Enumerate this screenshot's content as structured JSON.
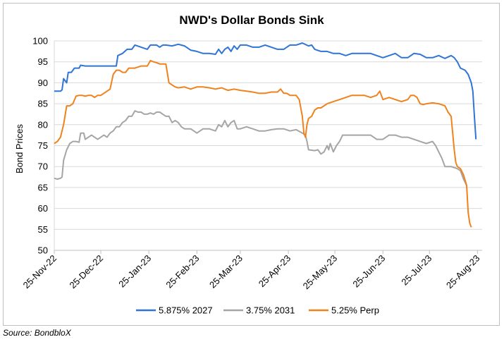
{
  "chart_data": {
    "type": "line",
    "title": "NWD's Dollar Bonds Sink",
    "ylabel": "Bond Prices",
    "xlabel": "",
    "ylim": [
      50,
      100
    ],
    "ytick_step": 5,
    "grid": "horizontal",
    "legend_position": "bottom",
    "x_tick_labels": [
      "25-Nov-22",
      "25-Dec-22",
      "25-Jan-23",
      "25-Feb-23",
      "25-Mar-23",
      "25-Apr-23",
      "25-May-23",
      "25-Jun-23",
      "25-Jul-23",
      "25-Aug-23"
    ],
    "x_domain_days": [
      0,
      276
    ],
    "x_tick_days": [
      0,
      30,
      61,
      92,
      120,
      151,
      181,
      212,
      242,
      273
    ],
    "series": [
      {
        "name": "5.875% 2027",
        "color": "#2e75d6",
        "points": [
          [
            0,
            88
          ],
          [
            4,
            88
          ],
          [
            5,
            88.3
          ],
          [
            6,
            91
          ],
          [
            8,
            90
          ],
          [
            9,
            92.5
          ],
          [
            11,
            92.5
          ],
          [
            13,
            93.5
          ],
          [
            16,
            93.5
          ],
          [
            17,
            94.2
          ],
          [
            20,
            94
          ],
          [
            24,
            94
          ],
          [
            28,
            94
          ],
          [
            32,
            94
          ],
          [
            40,
            94
          ],
          [
            41,
            96.5
          ],
          [
            44,
            97
          ],
          [
            47,
            98
          ],
          [
            50,
            98
          ],
          [
            52,
            99
          ],
          [
            56,
            98.5
          ],
          [
            60,
            98
          ],
          [
            62,
            99
          ],
          [
            66,
            99
          ],
          [
            68,
            98.5
          ],
          [
            70,
            99
          ],
          [
            72,
            99
          ],
          [
            76,
            98.8
          ],
          [
            80,
            99.2
          ],
          [
            84,
            98.8
          ],
          [
            88,
            97.8
          ],
          [
            92,
            97.5
          ],
          [
            96,
            97
          ],
          [
            100,
            97
          ],
          [
            104,
            96.8
          ],
          [
            106,
            98
          ],
          [
            108,
            97
          ],
          [
            110,
            98
          ],
          [
            112,
            98.5
          ],
          [
            114,
            97.5
          ],
          [
            116,
            98.8
          ],
          [
            118,
            98
          ],
          [
            120,
            99
          ],
          [
            124,
            99
          ],
          [
            128,
            98.5
          ],
          [
            132,
            98.5
          ],
          [
            136,
            99
          ],
          [
            140,
            98.5
          ],
          [
            144,
            98
          ],
          [
            148,
            98
          ],
          [
            152,
            99
          ],
          [
            156,
            99
          ],
          [
            160,
            99.5
          ],
          [
            164,
            98.8
          ],
          [
            166,
            99
          ],
          [
            168,
            98
          ],
          [
            172,
            97.5
          ],
          [
            176,
            97.5
          ],
          [
            180,
            97
          ],
          [
            184,
            97
          ],
          [
            188,
            96.5
          ],
          [
            192,
            97
          ],
          [
            196,
            97
          ],
          [
            200,
            97
          ],
          [
            204,
            97
          ],
          [
            208,
            96.5
          ],
          [
            212,
            96
          ],
          [
            216,
            96.5
          ],
          [
            220,
            97
          ],
          [
            224,
            96
          ],
          [
            228,
            96
          ],
          [
            232,
            97
          ],
          [
            236,
            96.8
          ],
          [
            240,
            96
          ],
          [
            244,
            96
          ],
          [
            248,
            96.5
          ],
          [
            252,
            95.8
          ],
          [
            256,
            96.5
          ],
          [
            258,
            96
          ],
          [
            260,
            95
          ],
          [
            262,
            93.5
          ],
          [
            265,
            93
          ],
          [
            267,
            92
          ],
          [
            269,
            90
          ],
          [
            270,
            88
          ],
          [
            271,
            82
          ],
          [
            272,
            76.5
          ]
        ]
      },
      {
        "name": "3.75% 2031",
        "color": "#a5a5a5",
        "points": [
          [
            0,
            67.2
          ],
          [
            2,
            67
          ],
          [
            4,
            67.2
          ],
          [
            5,
            67.5
          ],
          [
            6,
            71.5
          ],
          [
            8,
            74
          ],
          [
            10,
            75.5
          ],
          [
            12,
            76
          ],
          [
            14,
            76
          ],
          [
            16,
            75.8
          ],
          [
            17,
            78
          ],
          [
            19,
            78
          ],
          [
            20,
            76.5
          ],
          [
            22,
            77
          ],
          [
            24,
            77.5
          ],
          [
            26,
            77
          ],
          [
            28,
            76.5
          ],
          [
            30,
            77
          ],
          [
            32,
            77.5
          ],
          [
            34,
            77
          ],
          [
            36,
            78
          ],
          [
            38,
            78.5
          ],
          [
            40,
            79.5
          ],
          [
            42,
            79.5
          ],
          [
            44,
            80.5
          ],
          [
            46,
            81
          ],
          [
            48,
            82
          ],
          [
            50,
            82
          ],
          [
            52,
            83.3
          ],
          [
            54,
            83
          ],
          [
            56,
            83
          ],
          [
            58,
            82.5
          ],
          [
            60,
            82.5
          ],
          [
            62,
            82.8
          ],
          [
            64,
            82.5
          ],
          [
            66,
            83
          ],
          [
            68,
            83
          ],
          [
            70,
            82.5
          ],
          [
            72,
            82
          ],
          [
            74,
            82
          ],
          [
            76,
            80.5
          ],
          [
            78,
            81
          ],
          [
            80,
            80.5
          ],
          [
            82,
            79.5
          ],
          [
            84,
            79
          ],
          [
            88,
            79
          ],
          [
            92,
            78
          ],
          [
            96,
            79
          ],
          [
            100,
            79
          ],
          [
            104,
            78.5
          ],
          [
            106,
            80
          ],
          [
            108,
            79.5
          ],
          [
            110,
            81
          ],
          [
            112,
            79.5
          ],
          [
            114,
            80.5
          ],
          [
            116,
            81
          ],
          [
            118,
            79
          ],
          [
            120,
            79
          ],
          [
            124,
            79.5
          ],
          [
            128,
            79
          ],
          [
            132,
            78.5
          ],
          [
            136,
            78.5
          ],
          [
            140,
            78.8
          ],
          [
            144,
            79
          ],
          [
            148,
            79
          ],
          [
            152,
            78.5
          ],
          [
            156,
            78.8
          ],
          [
            160,
            78
          ],
          [
            162,
            77.5
          ],
          [
            163,
            76
          ],
          [
            164,
            74
          ],
          [
            168,
            73.8
          ],
          [
            170,
            74
          ],
          [
            172,
            73
          ],
          [
            174,
            73.5
          ],
          [
            176,
            75
          ],
          [
            177,
            74
          ],
          [
            178,
            75.5
          ],
          [
            180,
            73.5
          ],
          [
            182,
            75
          ],
          [
            184,
            76
          ],
          [
            186,
            77.5
          ],
          [
            188,
            77.5
          ],
          [
            192,
            77.5
          ],
          [
            196,
            77.5
          ],
          [
            200,
            77.5
          ],
          [
            204,
            77.5
          ],
          [
            208,
            76.5
          ],
          [
            212,
            76.5
          ],
          [
            216,
            77.5
          ],
          [
            220,
            77.5
          ],
          [
            224,
            77
          ],
          [
            228,
            77
          ],
          [
            232,
            76.5
          ],
          [
            236,
            76
          ],
          [
            240,
            75.5
          ],
          [
            244,
            76
          ],
          [
            246,
            75
          ],
          [
            248,
            73.5
          ],
          [
            250,
            72
          ],
          [
            252,
            70
          ],
          [
            256,
            70
          ],
          [
            260,
            69.5
          ],
          [
            262,
            69
          ],
          [
            264,
            67
          ],
          [
            266,
            65.5
          ]
        ]
      },
      {
        "name": "5.25% Perp",
        "color": "#f0821e",
        "points": [
          [
            0,
            75.5
          ],
          [
            2,
            76
          ],
          [
            4,
            77
          ],
          [
            6,
            80
          ],
          [
            8,
            84.5
          ],
          [
            10,
            84.5
          ],
          [
            12,
            85
          ],
          [
            14,
            86.8
          ],
          [
            16,
            87
          ],
          [
            18,
            87
          ],
          [
            20,
            86.8
          ],
          [
            22,
            87
          ],
          [
            24,
            87
          ],
          [
            26,
            86.5
          ],
          [
            28,
            87
          ],
          [
            30,
            87
          ],
          [
            32,
            87.5
          ],
          [
            34,
            88
          ],
          [
            36,
            88.5
          ],
          [
            38,
            92
          ],
          [
            40,
            93
          ],
          [
            42,
            93
          ],
          [
            44,
            92.5
          ],
          [
            46,
            92.5
          ],
          [
            48,
            93.5
          ],
          [
            52,
            93.5
          ],
          [
            56,
            94
          ],
          [
            58,
            94
          ],
          [
            60,
            94
          ],
          [
            62,
            95.3
          ],
          [
            64,
            95
          ],
          [
            66,
            94.8
          ],
          [
            68,
            94.5
          ],
          [
            70,
            94.5
          ],
          [
            72,
            94.5
          ],
          [
            74,
            90
          ],
          [
            76,
            89.5
          ],
          [
            78,
            89
          ],
          [
            80,
            88.8
          ],
          [
            84,
            89
          ],
          [
            88,
            88.5
          ],
          [
            92,
            89
          ],
          [
            96,
            89
          ],
          [
            100,
            88.8
          ],
          [
            104,
            88.5
          ],
          [
            108,
            88.8
          ],
          [
            112,
            88.2
          ],
          [
            116,
            88.5
          ],
          [
            120,
            88.2
          ],
          [
            124,
            88
          ],
          [
            128,
            87.8
          ],
          [
            132,
            87.5
          ],
          [
            136,
            87.5
          ],
          [
            140,
            87.8
          ],
          [
            144,
            87.8
          ],
          [
            146,
            88.5
          ],
          [
            148,
            87.5
          ],
          [
            150,
            87.5
          ],
          [
            152,
            87
          ],
          [
            156,
            87
          ],
          [
            158,
            86
          ],
          [
            159,
            84
          ],
          [
            160,
            82
          ],
          [
            161,
            78
          ],
          [
            162,
            77
          ],
          [
            163,
            80
          ],
          [
            164,
            81.5
          ],
          [
            166,
            82
          ],
          [
            168,
            83.5
          ],
          [
            170,
            84
          ],
          [
            172,
            84
          ],
          [
            176,
            85
          ],
          [
            180,
            85.5
          ],
          [
            184,
            86
          ],
          [
            188,
            86.5
          ],
          [
            192,
            87
          ],
          [
            196,
            87
          ],
          [
            200,
            87
          ],
          [
            204,
            86.5
          ],
          [
            208,
            87
          ],
          [
            210,
            88
          ],
          [
            212,
            86
          ],
          [
            216,
            86.5
          ],
          [
            220,
            86
          ],
          [
            224,
            85.5
          ],
          [
            228,
            86
          ],
          [
            230,
            87
          ],
          [
            232,
            87
          ],
          [
            234,
            86.5
          ],
          [
            236,
            85
          ],
          [
            238,
            84.8
          ],
          [
            240,
            85
          ],
          [
            244,
            85.2
          ],
          [
            248,
            85
          ],
          [
            252,
            84.5
          ],
          [
            254,
            83
          ],
          [
            256,
            82
          ],
          [
            257,
            78
          ],
          [
            258,
            74
          ],
          [
            259,
            71
          ],
          [
            260,
            70
          ],
          [
            262,
            69.5
          ],
          [
            264,
            68
          ],
          [
            266,
            65.5
          ],
          [
            267,
            59
          ],
          [
            268,
            56.5
          ],
          [
            269,
            55.5
          ]
        ]
      }
    ]
  },
  "source": "Source: BondbloX"
}
